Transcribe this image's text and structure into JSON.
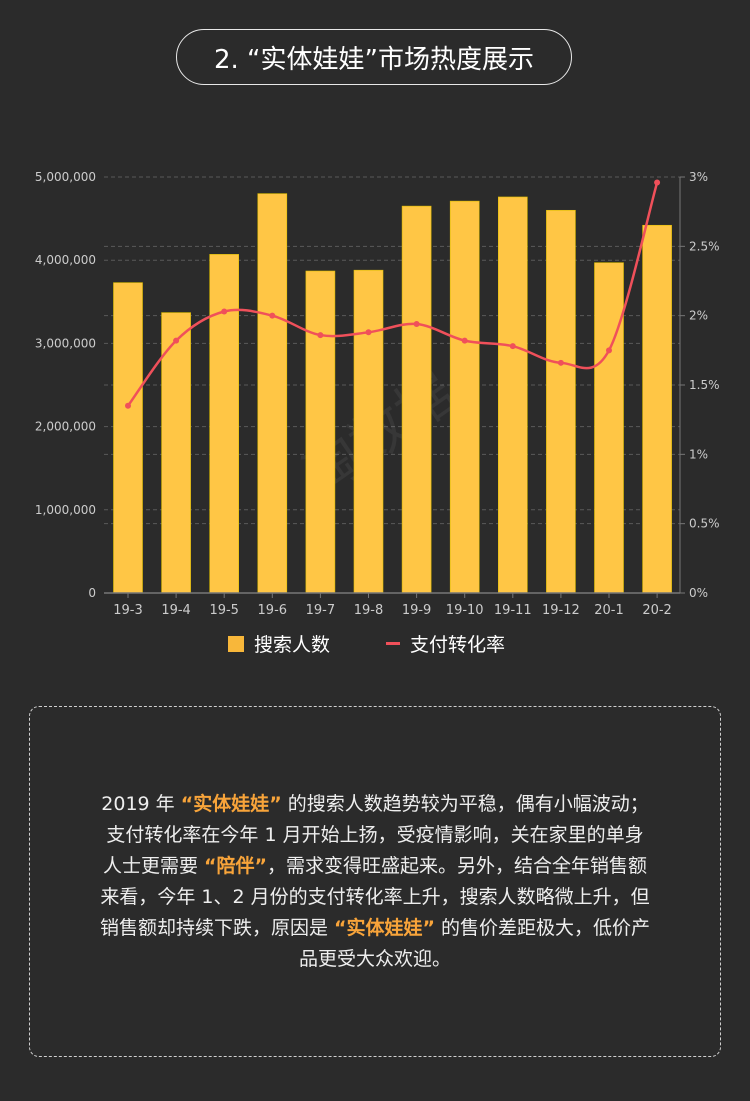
{
  "title": "2. “实体娃娃”市场热度展示",
  "chart_data": {
    "type": "bar+line",
    "categories": [
      "19-3",
      "19-4",
      "19-5",
      "19-6",
      "19-7",
      "19-8",
      "19-9",
      "19-10",
      "19-11",
      "19-12",
      "20-1",
      "20-2"
    ],
    "series": [
      {
        "name": "搜索人数",
        "type": "bar",
        "axis": "left",
        "color": "#ffc645",
        "values": [
          3730000,
          3370000,
          4070000,
          4800000,
          3870000,
          3880000,
          4650000,
          4710000,
          4760000,
          4600000,
          3970000,
          4420000
        ]
      },
      {
        "name": "支付转化率",
        "type": "line",
        "axis": "right",
        "color": "#f0505a",
        "smooth": true,
        "values": [
          1.35,
          1.82,
          2.03,
          2.0,
          1.86,
          1.88,
          1.94,
          1.82,
          1.78,
          1.66,
          1.75,
          2.96
        ]
      }
    ],
    "y_left": {
      "ylim": [
        0,
        5000000
      ],
      "ticks": [
        "0",
        "1,000,000",
        "2,000,000",
        "3,000,000",
        "4,000,000",
        "5,000,000"
      ]
    },
    "y_right": {
      "ylim": [
        0,
        3
      ],
      "ticks": [
        "0%",
        "0.5%",
        "1%",
        "1.5%",
        "2%",
        "2.5%",
        "3%"
      ]
    },
    "grid": true,
    "legend_position": "bottom",
    "watermark": "淘数据"
  },
  "legend": {
    "bar_label": "搜索人数",
    "line_label": "支付转化率"
  },
  "paragraph": {
    "segments": [
      {
        "text": "2019 年 ",
        "highlight": false
      },
      {
        "text": "“实体娃娃”",
        "highlight": true
      },
      {
        "text": " 的搜索人数趋势较为平稳，偶有小幅波动；\n支付转化率在今年 1 月开始上扬，受疫情影响，关在家里的单身\n人士更需要 ",
        "highlight": false
      },
      {
        "text": "“陪伴”",
        "highlight": true
      },
      {
        "text": "，需求变得旺盛起来。另外，结合全年销售额\n来看，今年 1、2 月份的支付转化率上升，搜索人数略微上升，但\n销售额却持续下跌，原因是 ",
        "highlight": false
      },
      {
        "text": "“实体娃娃”",
        "highlight": true
      },
      {
        "text": " 的售价差距极大，低价产\n品更受大众欢迎。",
        "highlight": false
      }
    ]
  }
}
